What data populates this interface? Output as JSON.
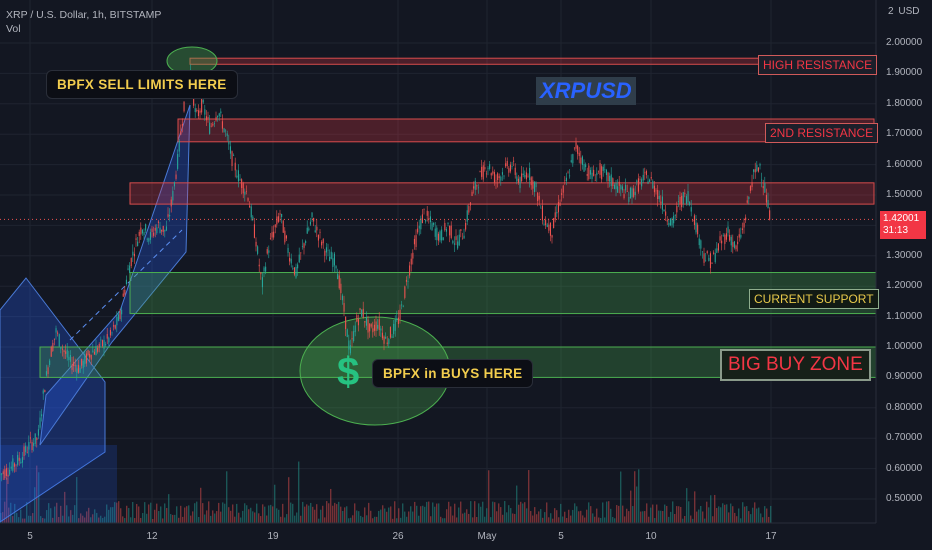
{
  "header": {
    "symbol_line": "XRP / U.S. Dollar, 1h, BITSTAMP",
    "indicator": "Vol"
  },
  "axis": {
    "currency_prefix": "2",
    "currency": "USD",
    "y_ticks": [
      "2.00000",
      "1.90000",
      "1.80000",
      "1.70000",
      "1.60000",
      "1.50000",
      "1.40000",
      "1.30000",
      "1.20000",
      "1.10000",
      "1.00000",
      "0.90000",
      "0.80000",
      "0.70000",
      "0.60000",
      "0.50000"
    ],
    "x_ticks": [
      "5",
      "12",
      "19",
      "26",
      "May",
      "5",
      "10",
      "17"
    ]
  },
  "price_tag": {
    "price": "1.42001",
    "countdown": "31:13",
    "color": "#f23645"
  },
  "labels": {
    "ticker": "XRPUSD",
    "sell_callout": "BPFX SELL LIMITS HERE",
    "buy_callout": "BPFX in BUYS HERE",
    "dollar": "$",
    "high_resistance": "HIGH RESISTANCE",
    "second_resistance": "2ND RESISTANCE",
    "current_support": "CURRENT SUPPORT",
    "big_buy_zone": "BIG BUY ZONE"
  },
  "zones": {
    "high_resistance": [
      1.93,
      1.95
    ],
    "second_resistance": [
      1.675,
      1.75
    ],
    "resistance": [
      1.47,
      1.54
    ],
    "current_support": [
      1.11,
      1.245
    ],
    "big_buy_zone": [
      0.9,
      1.0
    ]
  },
  "colors": {
    "background": "#131722",
    "up": "#26a69a",
    "down": "#ef5350",
    "resistance_fill": "rgba(242,54,69,0.25)",
    "support_fill": "rgba(76,175,80,0.28)",
    "channel_fill": "rgba(41,98,255,0.28)"
  },
  "price_path": [
    [
      0,
      0.58
    ],
    [
      10,
      0.6
    ],
    [
      22,
      0.64
    ],
    [
      30,
      0.68
    ],
    [
      38,
      0.7
    ],
    [
      44,
      0.86
    ],
    [
      50,
      0.97
    ],
    [
      56,
      1.05
    ],
    [
      62,
      1.0
    ],
    [
      70,
      0.95
    ],
    [
      80,
      0.93
    ],
    [
      90,
      0.98
    ],
    [
      100,
      1.0
    ],
    [
      110,
      1.03
    ],
    [
      120,
      1.1
    ],
    [
      128,
      1.25
    ],
    [
      135,
      1.33
    ],
    [
      142,
      1.4
    ],
    [
      150,
      1.36
    ],
    [
      158,
      1.4
    ],
    [
      166,
      1.38
    ],
    [
      172,
      1.48
    ],
    [
      178,
      1.62
    ],
    [
      184,
      1.8
    ],
    [
      190,
      1.92
    ],
    [
      196,
      1.75
    ],
    [
      202,
      1.8
    ],
    [
      210,
      1.72
    ],
    [
      218,
      1.78
    ],
    [
      226,
      1.7
    ],
    [
      232,
      1.62
    ],
    [
      240,
      1.55
    ],
    [
      248,
      1.5
    ],
    [
      256,
      1.35
    ],
    [
      262,
      1.2
    ],
    [
      268,
      1.32
    ],
    [
      274,
      1.38
    ],
    [
      280,
      1.44
    ],
    [
      288,
      1.32
    ],
    [
      296,
      1.24
    ],
    [
      304,
      1.34
    ],
    [
      312,
      1.42
    ],
    [
      320,
      1.36
    ],
    [
      328,
      1.3
    ],
    [
      336,
      1.28
    ],
    [
      344,
      1.12
    ],
    [
      350,
      0.98
    ],
    [
      356,
      1.08
    ],
    [
      362,
      1.12
    ],
    [
      370,
      1.05
    ],
    [
      378,
      1.08
    ],
    [
      386,
      1.02
    ],
    [
      394,
      1.06
    ],
    [
      400,
      1.1
    ],
    [
      406,
      1.2
    ],
    [
      412,
      1.3
    ],
    [
      418,
      1.38
    ],
    [
      424,
      1.44
    ],
    [
      432,
      1.4
    ],
    [
      440,
      1.36
    ],
    [
      448,
      1.4
    ],
    [
      456,
      1.34
    ],
    [
      464,
      1.38
    ],
    [
      472,
      1.5
    ],
    [
      480,
      1.56
    ],
    [
      488,
      1.6
    ],
    [
      496,
      1.55
    ],
    [
      504,
      1.58
    ],
    [
      512,
      1.6
    ],
    [
      520,
      1.54
    ],
    [
      528,
      1.58
    ],
    [
      536,
      1.52
    ],
    [
      544,
      1.42
    ],
    [
      552,
      1.38
    ],
    [
      560,
      1.48
    ],
    [
      568,
      1.56
    ],
    [
      576,
      1.66
    ],
    [
      584,
      1.6
    ],
    [
      592,
      1.56
    ],
    [
      600,
      1.58
    ],
    [
      610,
      1.55
    ],
    [
      620,
      1.52
    ],
    [
      630,
      1.5
    ],
    [
      640,
      1.54
    ],
    [
      648,
      1.56
    ],
    [
      656,
      1.52
    ],
    [
      664,
      1.46
    ],
    [
      672,
      1.4
    ],
    [
      680,
      1.48
    ],
    [
      688,
      1.5
    ],
    [
      696,
      1.4
    ],
    [
      704,
      1.3
    ],
    [
      712,
      1.28
    ],
    [
      720,
      1.34
    ],
    [
      728,
      1.38
    ],
    [
      736,
      1.32
    ],
    [
      744,
      1.4
    ],
    [
      752,
      1.55
    ],
    [
      760,
      1.6
    ],
    [
      766,
      1.5
    ],
    [
      770,
      1.42
    ]
  ]
}
